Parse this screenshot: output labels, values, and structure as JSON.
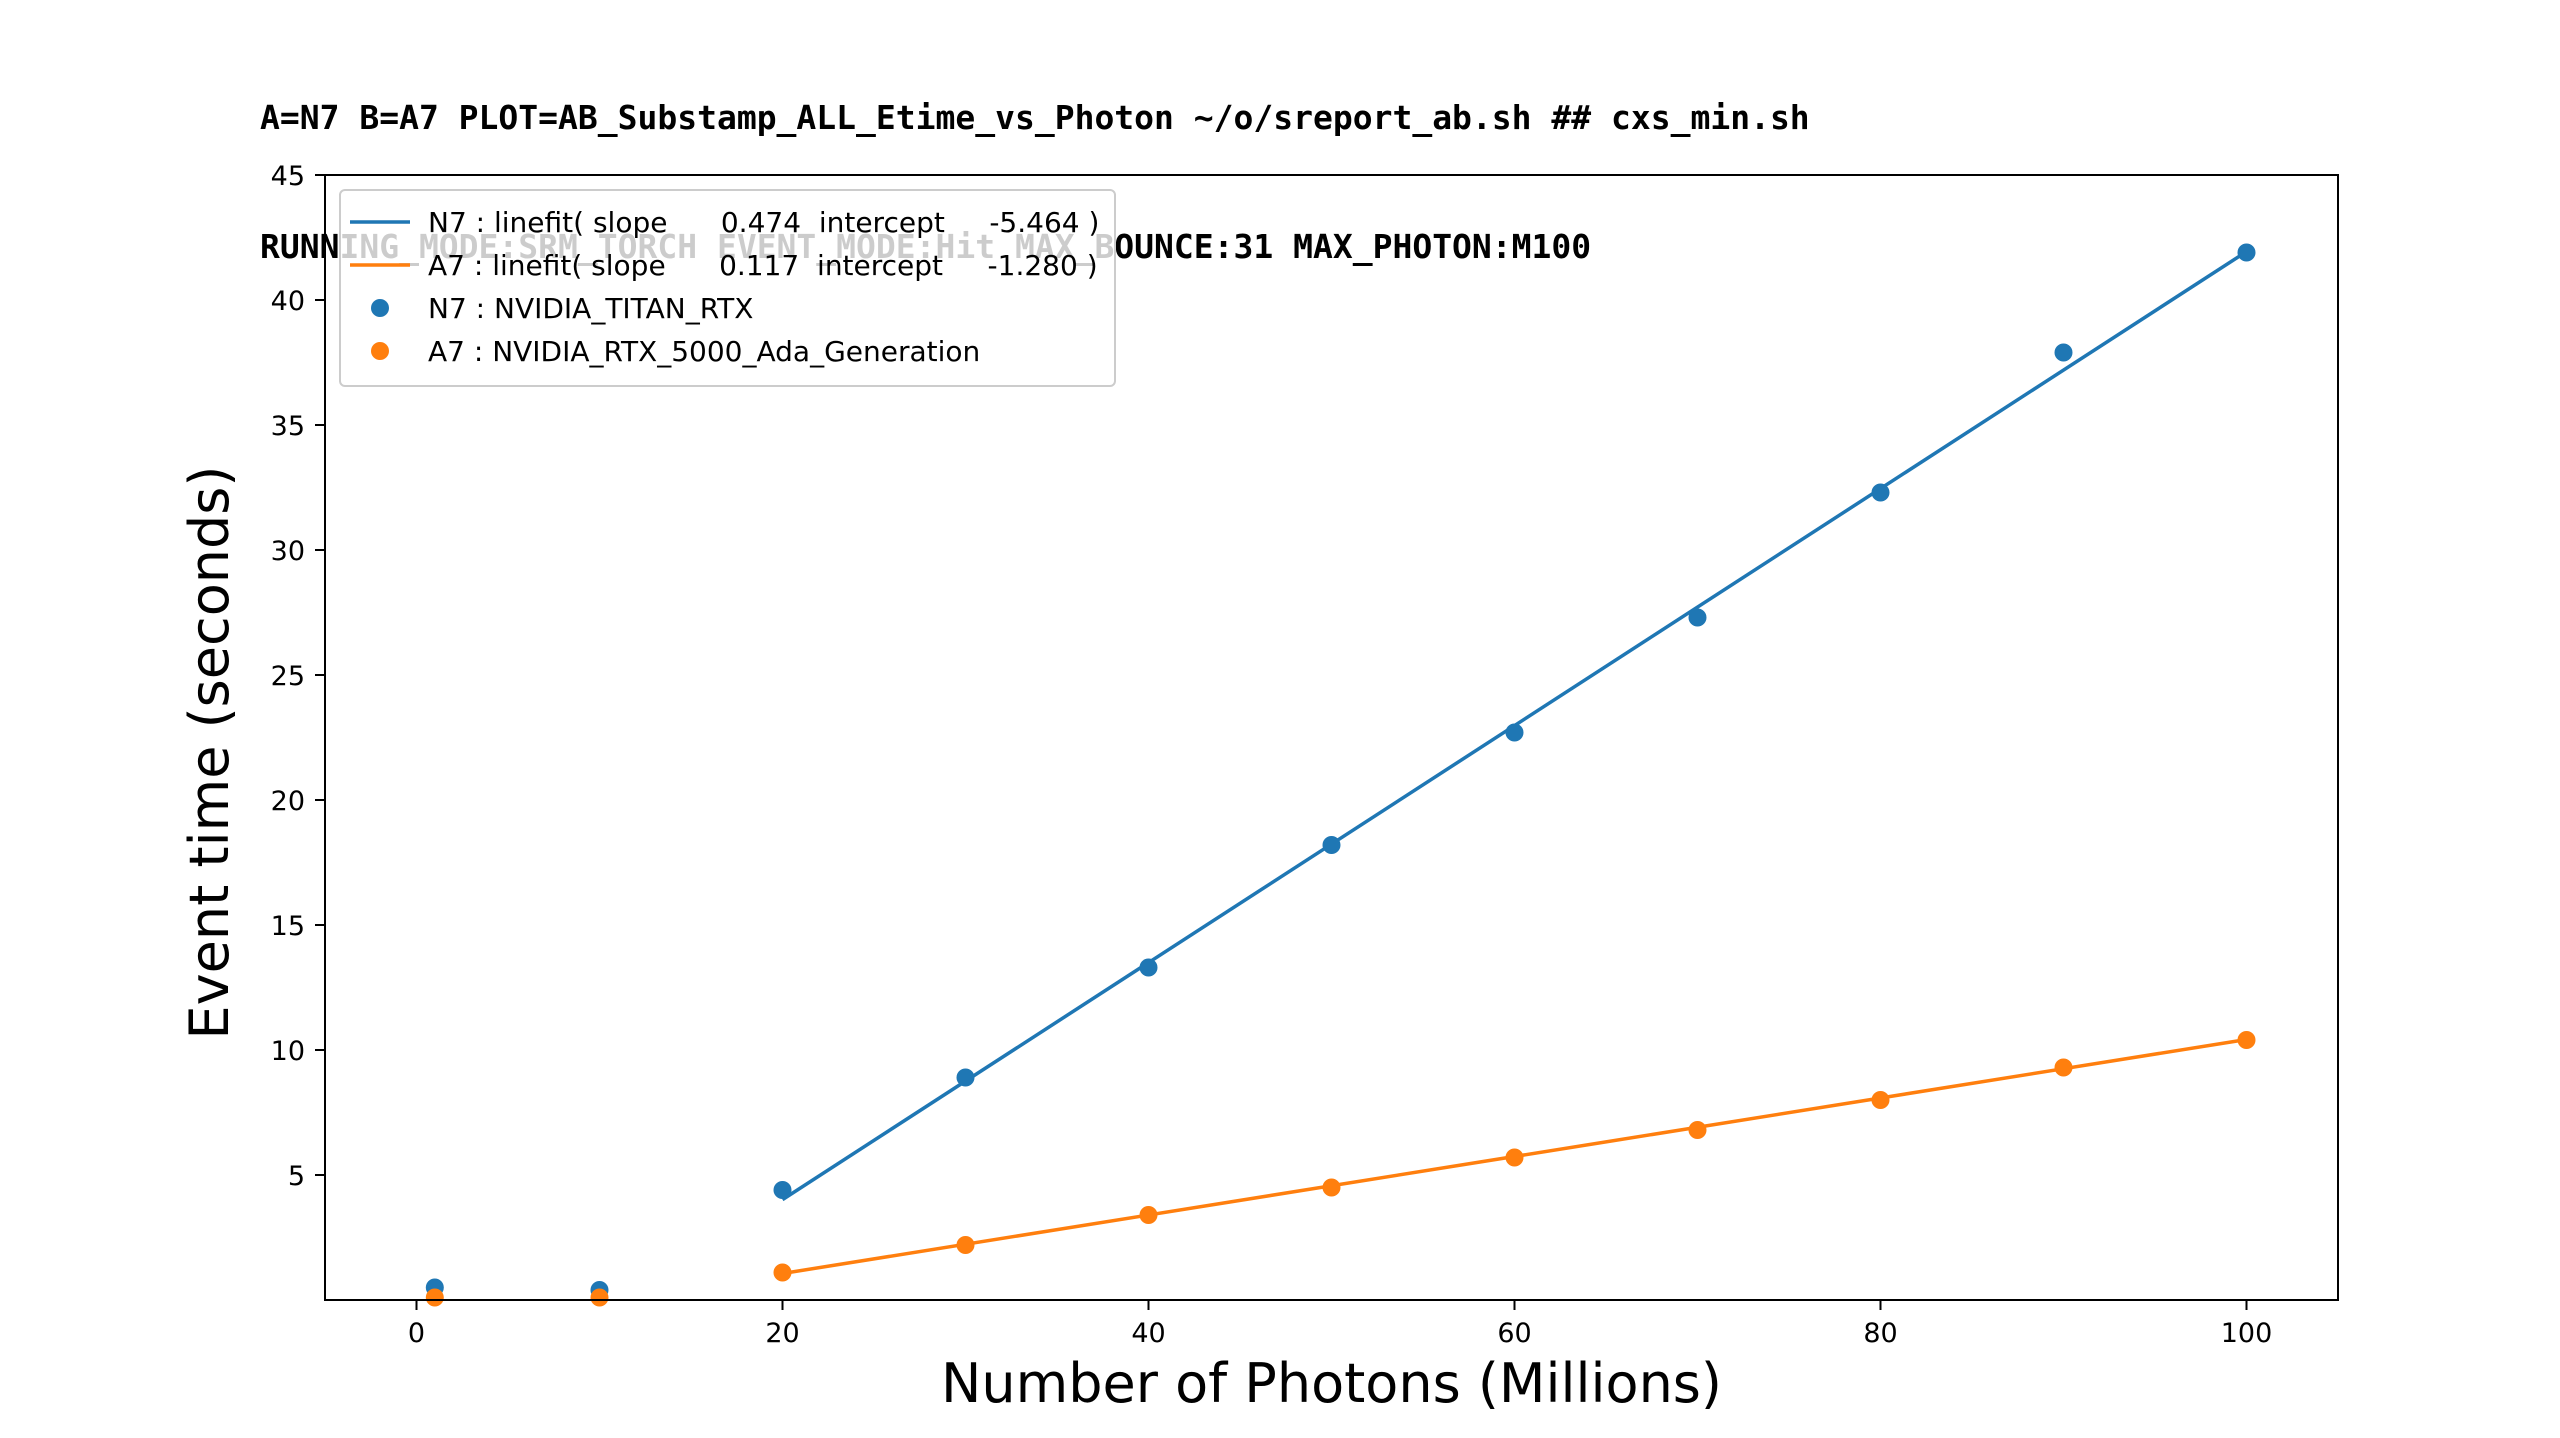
{
  "title_lines": [
    "A=N7 B=A7 PLOT=AB_Substamp_ALL_Etime_vs_Photon ~/o/sreport_ab.sh ## cxs_min.sh",
    "RUNNING_MODE:SRM_TORCH EVENT_MODE:Hit MAX_BOUNCE:31 MAX_PHOTON:M100"
  ],
  "chart_data": {
    "type": "scatter",
    "title": "A=N7 B=A7 PLOT=AB_Substamp_ALL_Etime_vs_Photon ~/o/sreport_ab.sh ## cxs_min.sh\nRUNNING_MODE:SRM_TORCH EVENT_MODE:Hit MAX_BOUNCE:31 MAX_PHOTON:M100",
    "xlabel": "Number of Photons (Millions)",
    "ylabel": "Event time (seconds)",
    "xlim": [
      -5,
      105
    ],
    "ylim": [
      0,
      45
    ],
    "xticks": [
      0,
      20,
      40,
      60,
      80,
      100
    ],
    "yticks": [
      5,
      10,
      15,
      20,
      25,
      30,
      35,
      40,
      45
    ],
    "grid": false,
    "legend_placement": "upper-left",
    "series": [
      {
        "name": "N7 : NVIDIA_TITAN_RTX",
        "kind": "scatter",
        "color": "#1f77b4",
        "x": [
          1,
          10,
          20,
          30,
          40,
          50,
          60,
          70,
          80,
          90,
          100
        ],
        "y": [
          0.5,
          0.4,
          4.4,
          8.9,
          13.3,
          18.2,
          22.7,
          27.3,
          32.3,
          37.9,
          41.9
        ]
      },
      {
        "name": "A7 : NVIDIA_RTX_5000_Ada_Generation",
        "kind": "scatter",
        "color": "#ff7f0e",
        "x": [
          1,
          10,
          20,
          30,
          40,
          50,
          60,
          70,
          80,
          90,
          100
        ],
        "y": [
          0.1,
          0.1,
          1.1,
          2.2,
          3.4,
          4.5,
          5.7,
          6.8,
          8.0,
          9.3,
          10.4
        ]
      },
      {
        "name": "N7 : linefit( slope      0.474  intercept     -5.464 )",
        "kind": "line",
        "color": "#1f77b4",
        "x": [
          20,
          100
        ],
        "y": [
          4.016,
          41.936
        ]
      },
      {
        "name": "A7 : linefit( slope      0.117  intercept     -1.280 )",
        "kind": "line",
        "color": "#ff7f0e",
        "x": [
          20,
          100
        ],
        "y": [
          1.06,
          10.42
        ]
      }
    ],
    "legend_order": [
      2,
      3,
      0,
      1
    ]
  }
}
